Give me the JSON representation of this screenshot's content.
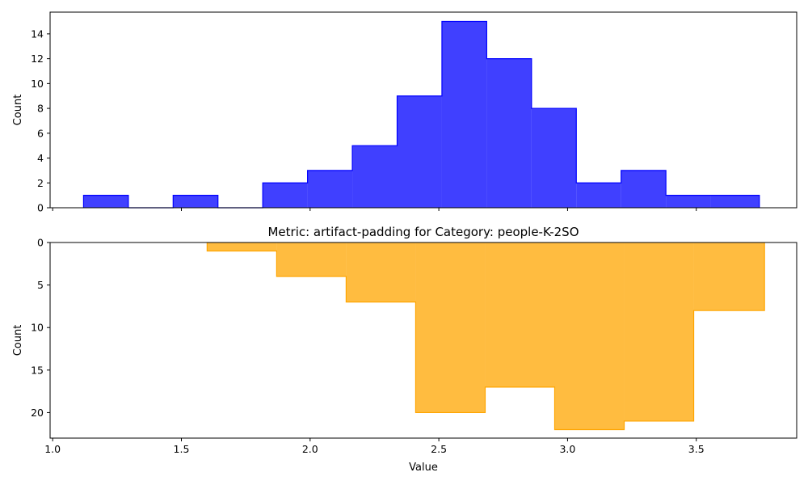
{
  "chart_data": [
    {
      "type": "histogram",
      "title": "",
      "xlabel": "",
      "ylabel": "Count",
      "color": "#0000ff",
      "fill_opacity": 0.75,
      "xlim": [
        0.99,
        3.89
      ],
      "ylim": [
        0,
        15.75
      ],
      "yticks": [
        "0",
        "2",
        "4",
        "6",
        "8",
        "10",
        "12",
        "14"
      ],
      "ytick_values": [
        0,
        2,
        4,
        6,
        8,
        10,
        12,
        14
      ],
      "xtick_values": [
        1.0,
        1.5,
        2.0,
        2.5,
        3.0,
        3.5
      ],
      "bin_edges": [
        1.12,
        1.294,
        1.468,
        1.642,
        1.816,
        1.99,
        2.164,
        2.338,
        2.512,
        2.686,
        2.86,
        3.034,
        3.208,
        3.382,
        3.556,
        3.745
      ],
      "counts": [
        1,
        0,
        1,
        0,
        2,
        3,
        5,
        9,
        15,
        12,
        8,
        2,
        3,
        1,
        1
      ]
    },
    {
      "type": "histogram",
      "title": "Metric: artifact-padding for Category: people-K-2SO",
      "xlabel": "Value",
      "ylabel": "Count",
      "color": "#ffa500",
      "fill_opacity": 0.75,
      "inverted_y": true,
      "xlim": [
        0.99,
        3.89
      ],
      "ylim": [
        0,
        23
      ],
      "yticks": [
        "0",
        "5",
        "10",
        "15",
        "20"
      ],
      "ytick_values": [
        0,
        5,
        10,
        15,
        20
      ],
      "xticks": [
        "1.0",
        "1.5",
        "2.0",
        "2.5",
        "3.0",
        "3.5"
      ],
      "xtick_values": [
        1.0,
        1.5,
        2.0,
        2.5,
        3.0,
        3.5
      ],
      "bin_edges": [
        1.6,
        1.87,
        2.14,
        2.41,
        2.68,
        2.95,
        3.22,
        3.49,
        3.765
      ],
      "counts": [
        1,
        4,
        7,
        20,
        17,
        22,
        21,
        8
      ]
    }
  ]
}
